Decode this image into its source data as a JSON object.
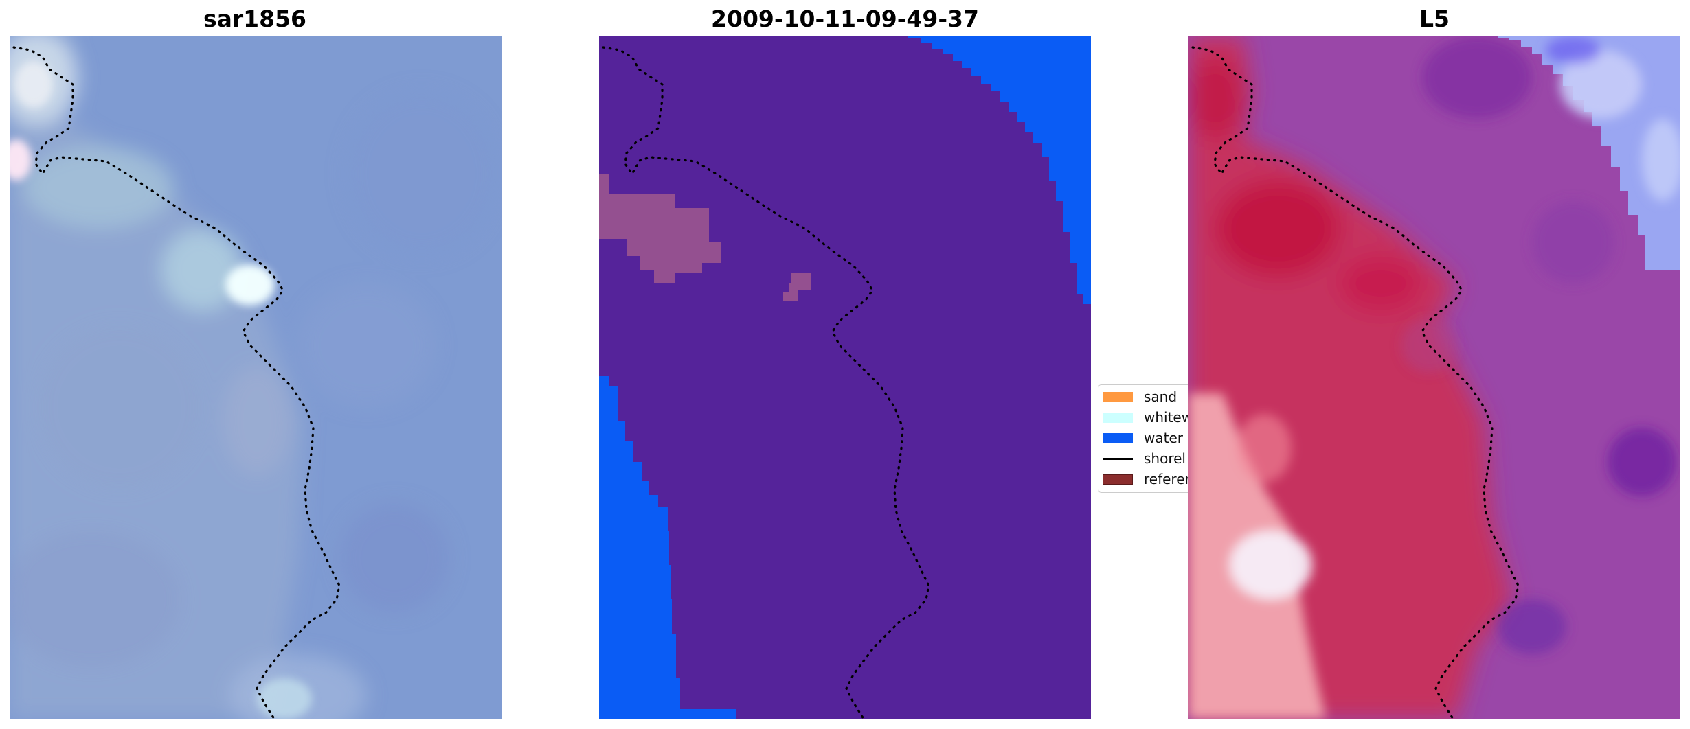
{
  "panels": {
    "left": {
      "title": "sar1856"
    },
    "middle": {
      "title": "2009-10-11-09-49-37"
    },
    "right": {
      "title": "L5"
    }
  },
  "legend": {
    "entries": [
      {
        "label": "sand",
        "color": "#ff9940",
        "kind": "patch"
      },
      {
        "label": "whitew",
        "color": "#ccffff",
        "kind": "patch"
      },
      {
        "label": "water",
        "color": "#0a5cf5",
        "kind": "patch"
      },
      {
        "label": "shorel",
        "color": "#000000",
        "kind": "line"
      },
      {
        "label": "referer",
        "color": "#8b2d2d",
        "kind": "patch"
      }
    ]
  },
  "colors": {
    "classified_background": "#55239a",
    "water": "#0a5cf5",
    "reference_overlay": "#a0588e",
    "shoreline": "#000000",
    "sar_base": "#7f9bd2",
    "l5_land": "#c6325f",
    "l5_water": "#9a47a8"
  }
}
